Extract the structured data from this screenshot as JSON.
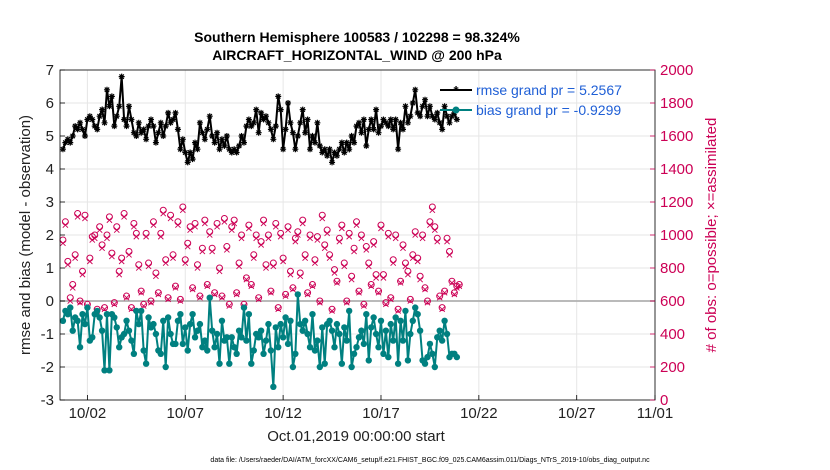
{
  "chart_data": {
    "type": "line",
    "title_line1": "Southern Hemisphere 100583 / 102298 = 98.324%",
    "title_line2": "AIRCRAFT_HORIZONTAL_WIND @ 200 hPa",
    "xlabel": "Oct.01,2019 00:00:00 start",
    "ylabel_left": "rmse and bias (model - observation)",
    "ylabel_right": "# of obs: o=possible; ×=assimilated",
    "footnote": "data file: /Users/raeder/DAI/ATM_forcXX/CAM6_setup/f.e21.FHIST_BGC.f09_025.CAM6assim.011/Diags_NTrS_2019-10/obs_diag_output.nc",
    "xlim": [
      0.6,
      31.0
    ],
    "ylim_left": [
      -3,
      7
    ],
    "ylim_right": [
      0,
      2000
    ],
    "xticks": [
      {
        "x": 2,
        "label": "10/02"
      },
      {
        "x": 7,
        "label": "10/07"
      },
      {
        "x": 12,
        "label": "10/12"
      },
      {
        "x": 17,
        "label": "10/17"
      },
      {
        "x": 22,
        "label": "10/22"
      },
      {
        "x": 27,
        "label": "10/27"
      },
      {
        "x": 32,
        "label": "11/01"
      }
    ],
    "yticks_left": [
      -3,
      -2,
      -1,
      0,
      1,
      2,
      3,
      4,
      5,
      6,
      7
    ],
    "yticks_right": [
      0,
      200,
      400,
      600,
      800,
      1000,
      1200,
      1400,
      1600,
      1800,
      2000
    ],
    "colors": {
      "rmse": "#000000",
      "bias": "#008080",
      "obs": "#cc0055",
      "grid": "#e6e6e6",
      "zero_line": "#b0b0b0",
      "legend_text": "#1f5fd6"
    },
    "x_start": 0.75,
    "x_step": 0.125,
    "series": [
      {
        "name": "rmse grand pr = 5.2567",
        "axis": "left",
        "values": [
          4.6,
          4.8,
          4.9,
          4.8,
          5.0,
          5.3,
          5.2,
          5.4,
          5.2,
          5.0,
          5.5,
          5.6,
          5.5,
          5.3,
          5.2,
          5.6,
          5.8,
          5.4,
          6.4,
          5.9,
          6.2,
          5.3,
          5.6,
          5.9,
          6.8,
          5.5,
          5.3,
          5.9,
          5.5,
          5.1,
          5.0,
          5.4,
          5.1,
          5.2,
          4.9,
          5.3,
          5.5,
          5.3,
          4.8,
          5.1,
          5.4,
          5.0,
          5.3,
          5.7,
          5.4,
          5.5,
          5.7,
          5.2,
          4.6,
          4.9,
          4.5,
          4.2,
          4.5,
          4.3,
          4.8,
          4.6,
          5.4,
          5.1,
          4.9,
          5.2,
          5.6,
          5.0,
          4.8,
          5.1,
          4.6,
          4.9,
          4.7,
          5.0,
          4.6,
          4.5,
          4.6,
          4.5,
          4.7,
          5.0,
          4.8,
          5.3,
          5.5,
          5.3,
          5.4,
          5.8,
          5.1,
          5.7,
          5.5,
          5.6,
          5.4,
          5.2,
          4.9,
          5.3,
          6.2,
          5.8,
          4.6,
          5.2,
          6.0,
          5.4,
          5.1,
          4.6,
          5.0,
          5.4,
          5.8,
          5.1,
          5.5,
          4.6,
          5.0,
          4.8,
          5.4,
          4.7,
          4.5,
          4.6,
          4.4,
          4.6,
          4.2,
          4.5,
          4.4,
          4.6,
          4.8,
          4.5,
          4.8,
          4.6,
          5.0,
          4.8,
          5.3,
          5.4,
          5.1,
          5.5,
          4.7,
          5.2,
          5.5,
          5.2,
          5.8,
          5.1,
          5.3,
          5.5,
          5.4,
          5.3,
          5.5,
          5.2,
          5.5,
          4.6,
          5.4,
          5.2,
          5.9,
          5.4,
          5.6,
          6.0,
          6.4,
          5.7,
          5.6,
          5.9,
          6.1,
          5.6,
          5.9,
          5.6,
          5.5,
          5.7,
          5.4,
          5.2,
          5.9,
          5.6,
          5.4,
          5.6,
          5.7,
          5.5
        ]
      },
      {
        "name": "bias grand pr = -0.9299",
        "axis": "left",
        "values": [
          -0.6,
          -0.3,
          -0.4,
          -0.2,
          -0.9,
          -0.5,
          -0.6,
          -1.4,
          -0.4,
          -0.7,
          -0.2,
          -1.2,
          -1.1,
          -0.4,
          -0.3,
          -0.5,
          -0.9,
          -2.1,
          -0.4,
          -2.1,
          -0.4,
          -0.5,
          -0.8,
          -1.4,
          -1.1,
          -1.0,
          -0.6,
          -0.9,
          -1.2,
          -1.6,
          -0.3,
          -0.7,
          -0.3,
          -1.5,
          -1.9,
          -0.5,
          -0.8,
          -0.7,
          -1.0,
          -1.5,
          -1.6,
          -0.6,
          -2.0,
          -0.5,
          -1.0,
          -1.3,
          -1.3,
          -0.6,
          -0.4,
          -1.3,
          -0.8,
          -1.5,
          -0.7,
          -0.4,
          -1.1,
          -0.9,
          -0.7,
          -1.4,
          -1.2,
          -1.5,
          0.1,
          -0.9,
          -1.4,
          -1.0,
          -1.9,
          -0.6,
          -1.2,
          -1.1,
          -1.9,
          -1.1,
          -1.4,
          -1.6,
          -0.9,
          -1.1,
          -0.2,
          -1.2,
          -0.4,
          -1.9,
          -1.5,
          -1.0,
          -1.1,
          -0.9,
          -1.6,
          -1.2,
          -0.7,
          -1.5,
          -2.6,
          -0.8,
          -1.4,
          -0.7,
          -1.1,
          -0.5,
          -1.3,
          -0.6,
          -2.0,
          -1.6,
          0.2,
          -0.7,
          -0.9,
          -0.6,
          -1.0,
          -1.4,
          -0.4,
          -1.5,
          -1.2,
          -2.0,
          -0.8,
          -1.9,
          -0.7,
          -0.6,
          -0.9,
          -1.4,
          -0.7,
          -1.0,
          -1.9,
          -0.8,
          -1.2,
          -0.3,
          -2.0,
          -1.6,
          -1.4,
          -1.1,
          -0.9,
          -1.3,
          -0.4,
          -1.8,
          -0.8,
          -0.5,
          -1.0,
          -1.4,
          -0.6,
          -1.6,
          -0.9,
          -1.7,
          -0.7,
          -1.2,
          -0.5,
          -1.9,
          -0.6,
          -1.2,
          -0.3,
          -1.8,
          -1.0,
          -0.6,
          -0.2,
          -0.4,
          -0.9,
          -1.8,
          -1.9,
          -1.7,
          -1.3,
          -1.6,
          -2.0,
          -1.1,
          -0.9,
          -1.2,
          -0.6,
          -1.0,
          -1.7,
          -1.6,
          -1.6,
          -1.7
        ]
      },
      {
        "name": "obs possible",
        "axis": "right",
        "values": [
          970,
          1080,
          840,
          620,
          700,
          880,
          1130,
          600,
          780,
          1120,
          580,
          860,
          990,
          1000,
          550,
          1050,
          940,
          560,
          1000,
          1110,
          890,
          590,
          1050,
          780,
          860,
          1130,
          630,
          900,
          560,
          1070,
          1010,
          820,
          660,
          580,
          1010,
          830,
          600,
          1080,
          770,
          650,
          1010,
          1150,
          850,
          620,
          1120,
          880,
          690,
          1080,
          610,
          1170,
          850,
          950,
          1050,
          680,
          1070,
          820,
          630,
          920,
          1090,
          700,
          1020,
          920,
          650,
          1070,
          800,
          630,
          1100,
          930,
          580,
          1050,
          1090,
          650,
          830,
          1000,
          580,
          740,
          1060,
          700,
          880,
          1000,
          620,
          960,
          1090,
          820,
          1000,
          660,
          830,
          1070,
          560,
          1010,
          860,
          640,
          1050,
          780,
          680,
          980,
          1020,
          770,
          1090,
          880,
          650,
          1000,
          700,
          850,
          990,
          600,
          1120,
          940,
          1030,
          880,
          550,
          790,
          720,
          980,
          1060,
          830,
          600,
          1010,
          750,
          920,
          1080,
          660,
          1000,
          580,
          930,
          830,
          700,
          960,
          760,
          660,
          1060,
          760,
          590,
          1010,
          620,
          850,
          1000,
          550,
          720,
          940,
          830,
          780,
          610,
          880,
          1020,
          860,
          750,
          1000,
          680,
          600,
          1080,
          1170,
          1050,
          980,
          630,
          560,
          660,
          980,
          900,
          720,
          650,
          690,
          700
        ]
      },
      {
        "name": "obs assimilated",
        "axis": "right",
        "values": [
          950,
          1060,
          820,
          600,
          680,
          860,
          1110,
          590,
          760,
          1100,
          570,
          840,
          970,
          980,
          540,
          1030,
          920,
          550,
          980,
          1090,
          870,
          580,
          1030,
          760,
          840,
          1110,
          620,
          880,
          550,
          1050,
          990,
          800,
          650,
          570,
          990,
          810,
          590,
          1060,
          750,
          640,
          990,
          1130,
          830,
          610,
          1100,
          860,
          680,
          1060,
          600,
          1150,
          830,
          930,
          1030,
          670,
          1050,
          800,
          620,
          900,
          1070,
          690,
          1000,
          900,
          640,
          1050,
          780,
          620,
          1080,
          910,
          570,
          1030,
          1070,
          640,
          810,
          980,
          570,
          730,
          1040,
          690,
          860,
          980,
          610,
          940,
          1070,
          800,
          980,
          650,
          810,
          1050,
          550,
          990,
          840,
          630,
          1030,
          760,
          670,
          960,
          1000,
          750,
          1070,
          860,
          640,
          980,
          690,
          830,
          970,
          590,
          1100,
          920,
          1010,
          860,
          540,
          770,
          710,
          960,
          1040,
          810,
          590,
          990,
          730,
          900,
          1060,
          650,
          980,
          570,
          910,
          810,
          690,
          940,
          740,
          650,
          1040,
          740,
          580,
          990,
          610,
          830,
          980,
          540,
          710,
          920,
          810,
          760,
          600,
          860,
          1000,
          840,
          730,
          980,
          670,
          590,
          1060,
          1150,
          1030,
          960,
          620,
          550,
          650,
          960,
          880,
          710,
          640,
          680,
          690
        ]
      }
    ]
  }
}
